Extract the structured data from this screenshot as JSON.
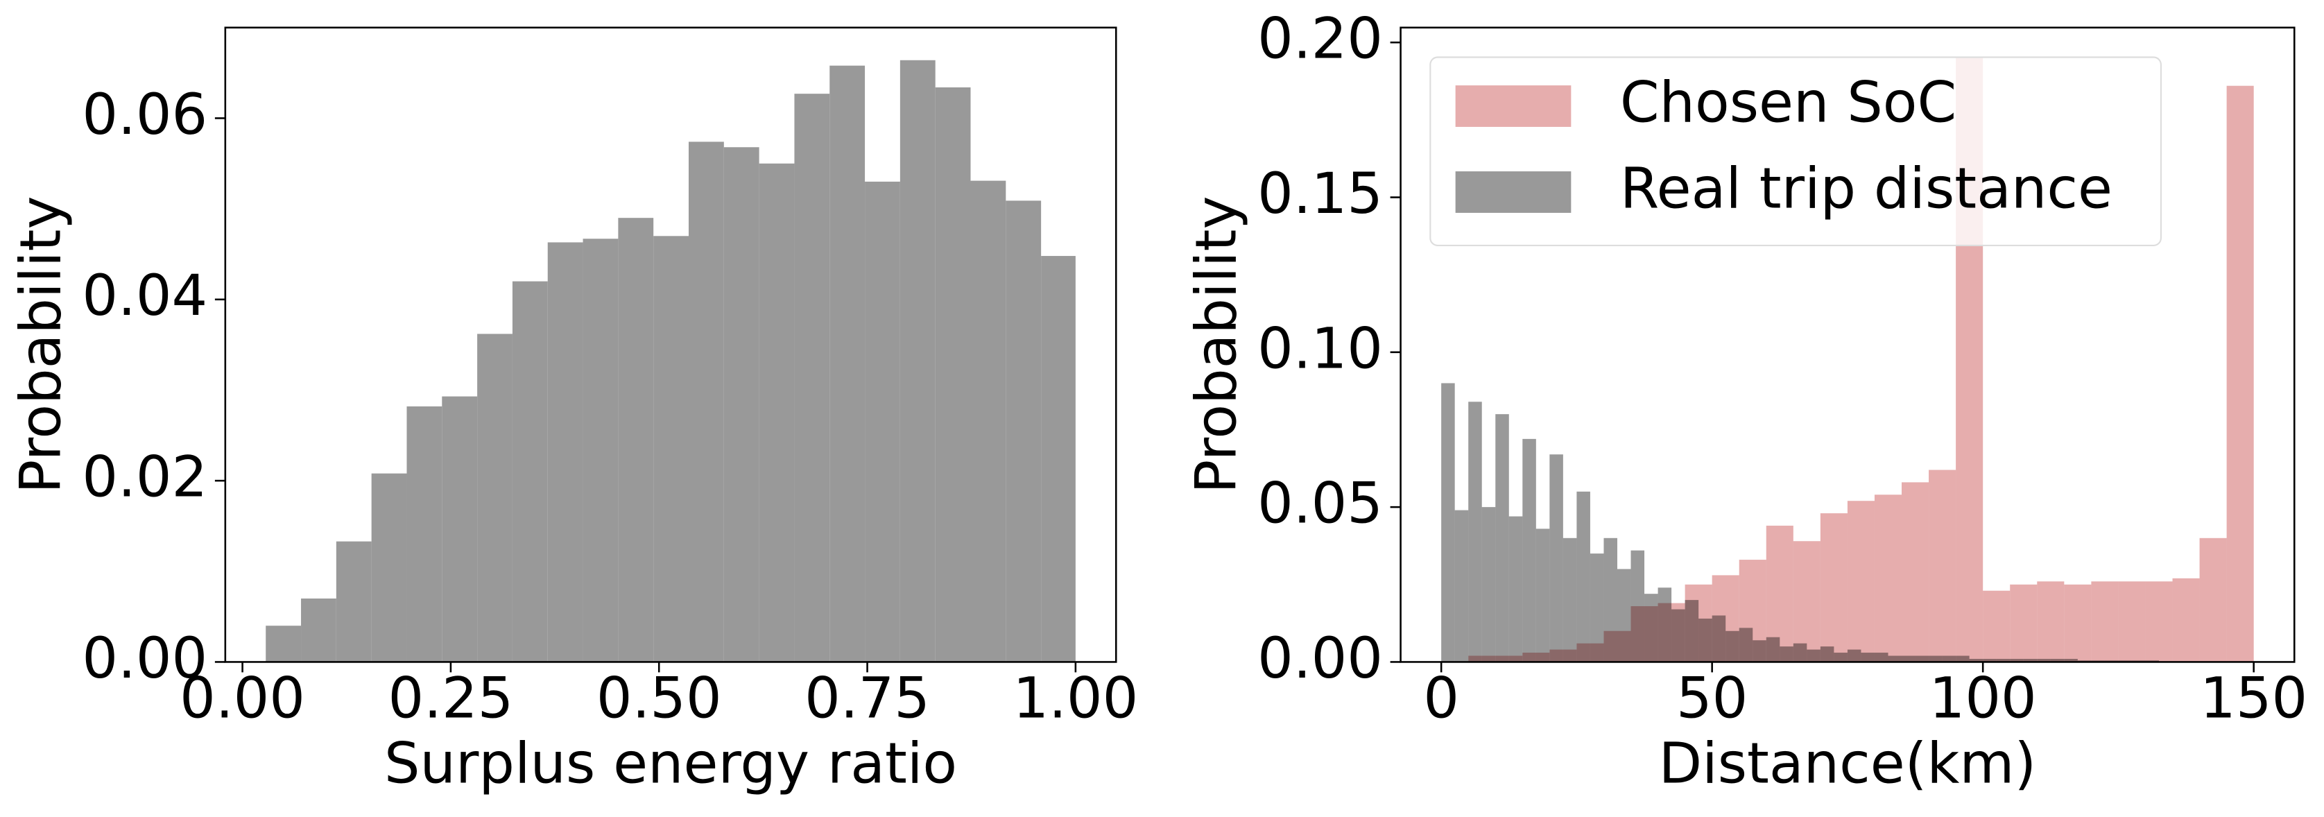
{
  "chart_data": [
    {
      "type": "histogram",
      "xlabel": "Surplus energy ratio",
      "ylabel": "Probability",
      "bins": [
        0.028,
        0.0703,
        0.1126,
        0.1549,
        0.1972,
        0.2395,
        0.2818,
        0.3241,
        0.3664,
        0.4087,
        0.451,
        0.4933,
        0.5356,
        0.5779,
        0.6202,
        0.6625,
        0.7048,
        0.7471,
        0.7894,
        0.8317,
        0.874,
        0.9163,
        0.9586,
        1.0
      ],
      "values": [
        0.004,
        0.007,
        0.0133,
        0.0208,
        0.0282,
        0.0293,
        0.0362,
        0.042,
        0.0463,
        0.0467,
        0.049,
        0.047,
        0.0574,
        0.0568,
        0.055,
        0.0627,
        0.0658,
        0.053,
        0.0664,
        0.0634,
        0.0531,
        0.0509,
        0.0448
      ],
      "color": "#999999",
      "alpha": 1,
      "xlim": [
        -0.0206,
        1.0486
      ],
      "ylim": [
        0,
        0.07
      ],
      "xticks": [
        {
          "value": 0,
          "label": "0.00"
        },
        {
          "value": 0.25,
          "label": "0.25"
        },
        {
          "value": 0.5,
          "label": "0.50"
        },
        {
          "value": 0.75,
          "label": "0.75"
        },
        {
          "value": 1,
          "label": "1.00"
        }
      ],
      "yticks": [
        {
          "value": 0,
          "label": "0.00"
        },
        {
          "value": 0.02,
          "label": "0.02"
        },
        {
          "value": 0.04,
          "label": "0.04"
        },
        {
          "value": 0.06,
          "label": "0.06"
        }
      ]
    },
    {
      "type": "histogram",
      "xlabel": "Distance(km)",
      "ylabel": "Probability",
      "legend": "upper left",
      "series": [
        {
          "name": "Chosen SoC",
          "color": "indianred",
          "alpha": 0.5,
          "bins": [
            0,
            5,
            10,
            15,
            20,
            25,
            30,
            35,
            40,
            45,
            50,
            55,
            60,
            65,
            70,
            75,
            80,
            85,
            90,
            95,
            100,
            105,
            110,
            115,
            120,
            125,
            130,
            135,
            140,
            145,
            150
          ],
          "values": [
            0.0,
            0.002,
            0.002,
            0.003,
            0.004,
            0.006,
            0.01,
            0.018,
            0.019,
            0.025,
            0.028,
            0.033,
            0.044,
            0.039,
            0.048,
            0.052,
            0.054,
            0.058,
            0.062,
            0.195,
            0.023,
            0.025,
            0.026,
            0.025,
            0.026,
            0.026,
            0.026,
            0.027,
            0.04,
            0.186
          ]
        },
        {
          "name": "Real trip distance",
          "color": "black",
          "alpha": 0.4,
          "bins": [
            0,
            2.5,
            5,
            7.5,
            10,
            12.5,
            15,
            17.5,
            20,
            22.5,
            25,
            27.5,
            30,
            32.5,
            35,
            37.5,
            40,
            42.5,
            45,
            47.5,
            50,
            52.5,
            55,
            57.5,
            60,
            62.5,
            65,
            67.5,
            70,
            72.5,
            75,
            77.5,
            80,
            82.5,
            85,
            87.5,
            90,
            92.5,
            95,
            97.5,
            100,
            102.5,
            105,
            107.5,
            110,
            112.5,
            115,
            117.5,
            120,
            122.5,
            125,
            127.5,
            130,
            132.5,
            135,
            137.5,
            140,
            142.5,
            145,
            147.5,
            150
          ],
          "values": [
            0.09,
            0.049,
            0.084,
            0.05,
            0.08,
            0.047,
            0.072,
            0.043,
            0.067,
            0.04,
            0.055,
            0.035,
            0.04,
            0.03,
            0.036,
            0.022,
            0.024,
            0.017,
            0.02,
            0.014,
            0.015,
            0.01,
            0.011,
            0.007,
            0.008,
            0.005,
            0.006,
            0.004,
            0.005,
            0.003,
            0.004,
            0.003,
            0.003,
            0.002,
            0.002,
            0.002,
            0.002,
            0.002,
            0.002,
            0.001,
            0.001,
            0.001,
            0.001,
            0.001,
            0.001,
            0.001,
            0.001,
            0.0005,
            0.0005,
            0.0005,
            0.0005,
            0.0005,
            0.0005,
            0,
            0,
            0,
            0,
            0,
            0,
            0
          ]
        }
      ],
      "xlim": [
        -7.5,
        157.5
      ],
      "ylim": [
        0,
        0.2048
      ],
      "xticks": [
        0,
        50,
        100,
        150
      ],
      "yticks": [
        {
          "value": 0,
          "label": "0.00"
        },
        {
          "value": 0.05,
          "label": "0.05"
        },
        {
          "value": 0.1,
          "label": "0.10"
        },
        {
          "value": 0.15,
          "label": "0.15"
        },
        {
          "value": 0.2,
          "label": "0.20"
        }
      ]
    }
  ]
}
